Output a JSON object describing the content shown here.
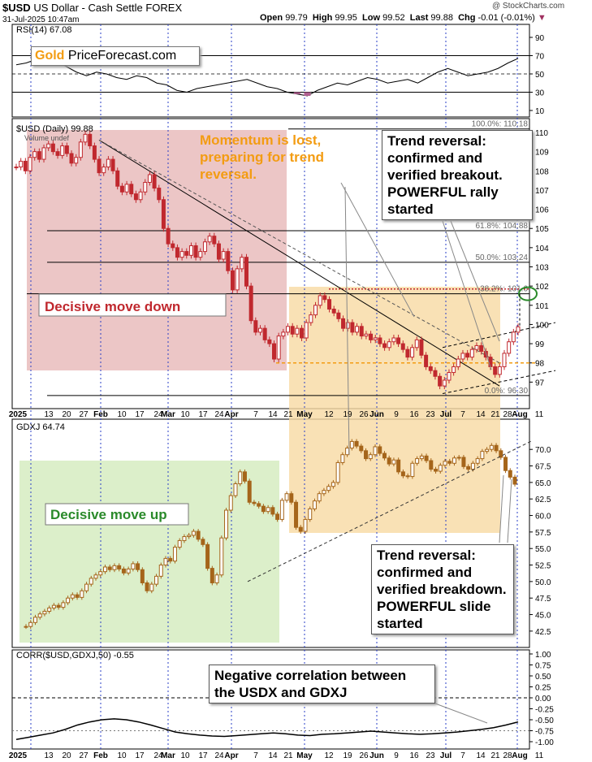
{
  "header": {
    "title": "$USD",
    "subtitle": "US Dollar - Cash Settle",
    "exchange": "FOREX",
    "date": "31-Jul-2025 10:47am",
    "open_label": "Open",
    "open": "99.79",
    "high_label": "High",
    "high": "99.95",
    "low_label": "Low",
    "low": "99.52",
    "last_label": "Last",
    "last": "99.88",
    "chg_label": "Chg",
    "chg": "-0.01 (-0.01%)",
    "watermark": "@ StockCharts.com"
  },
  "brand": {
    "gold": "Gold",
    "rest": "PriceForecast.com"
  },
  "colors": {
    "usd_candle": "#c0282e",
    "gdxj_candle": "#a5651a",
    "red_zone": "#e5b3b3",
    "orange_zone": "#f7d9a2",
    "green_zone": "#d6ecc1",
    "callout_orange": "#f39c12"
  },
  "callouts": {
    "momentum": "Momentum is lost, preparing for trend reversal.",
    "reversal_usd": "Trend reversal: confirmed and verified breakout. POWERFUL rally started",
    "reversal_gdxj": "Trend reversal: confirmed and verified breakdown. POWERFUL slide started",
    "negative_corr": "Negative correlation between the USDX and GDXJ"
  },
  "chart_data": [
    {
      "type": "line",
      "title": "RSI(14) 67.08",
      "ylim": [
        10,
        90
      ],
      "yticks": [
        10,
        30,
        50,
        70,
        90
      ],
      "reference_lines": [
        30,
        50,
        70
      ],
      "series": [
        {
          "name": "RSI(14)",
          "values": [
            60,
            62,
            66,
            68,
            64,
            58,
            52,
            48,
            52,
            50,
            46,
            44,
            48,
            46,
            40,
            38,
            32,
            30,
            34,
            36,
            38,
            40,
            42,
            44,
            40,
            36,
            34,
            30,
            28,
            26,
            32,
            36,
            40,
            38,
            42,
            46,
            44,
            40,
            42,
            44,
            40,
            46,
            52,
            56,
            52,
            48,
            50,
            52,
            56,
            62,
            67
          ]
        }
      ]
    },
    {
      "type": "candlestick",
      "title": "$USD (Daily) 99.88",
      "legend": "Volume undef",
      "ylim": [
        96,
        110
      ],
      "yticks": [
        97,
        98,
        99,
        100,
        101,
        102,
        103,
        104,
        105,
        106,
        107,
        108,
        109,
        110
      ],
      "fib_levels": [
        {
          "label": "100.0%: 110.18",
          "value": 110.18
        },
        {
          "label": "61.8%: 104.88",
          "value": 104.88
        },
        {
          "label": "50.0%: 103.24",
          "value": 103.24
        },
        {
          "label": "38.2%: 101.6",
          "value": 101.6
        },
        {
          "label": "0.0%: 96.30",
          "value": 96.3
        }
      ],
      "closes": [
        108.2,
        108.5,
        108.0,
        108.7,
        109.0,
        108.6,
        109.2,
        109.4,
        109.0,
        108.8,
        109.3,
        108.9,
        108.4,
        108.7,
        109.5,
        109.9,
        109.3,
        108.6,
        107.9,
        108.2,
        108.6,
        108.0,
        107.2,
        106.9,
        107.3,
        106.8,
        106.5,
        106.9,
        107.4,
        107.8,
        107.1,
        106.5,
        105.0,
        104.2,
        104.0,
        103.5,
        103.8,
        103.6,
        104.1,
        103.5,
        103.8,
        104.3,
        104.6,
        104.2,
        103.4,
        103.8,
        102.8,
        101.8,
        102.9,
        103.5,
        102.0,
        100.2,
        99.6,
        99.8,
        99.2,
        99.0,
        98.2,
        99.4,
        99.6,
        99.9,
        99.5,
        99.8,
        99.3,
        100.1,
        100.5,
        101.0,
        101.5,
        101.3,
        100.8,
        100.6,
        100.3,
        99.8,
        100.1,
        99.6,
        99.9,
        99.4,
        99.5,
        99.2,
        99.3,
        99.0,
        98.8,
        99.1,
        99.3,
        99.0,
        98.7,
        98.3,
        98.8,
        99.2,
        98.4,
        97.8,
        97.6,
        97.3,
        96.8,
        97.1,
        97.5,
        97.8,
        98.2,
        98.5,
        98.3,
        98.7,
        98.9,
        98.6,
        98.3,
        97.8,
        97.4,
        97.8,
        98.5,
        99.1,
        99.6,
        99.88
      ]
    },
    {
      "type": "candlestick",
      "title": "GDXJ 64.74",
      "ylim": [
        41.5,
        71.5
      ],
      "yticks": [
        42.5,
        45.0,
        47.5,
        50.0,
        52.5,
        55.0,
        57.5,
        60.0,
        62.5,
        65.0,
        67.5,
        70.0
      ],
      "closes": [
        43.2,
        43.8,
        44.6,
        45.1,
        45.5,
        46.0,
        46.4,
        46.1,
        46.8,
        47.5,
        48.0,
        47.6,
        48.6,
        49.6,
        50.5,
        51.0,
        51.5,
        52.2,
        51.8,
        52.4,
        51.9,
        51.3,
        51.9,
        52.7,
        51.8,
        49.8,
        48.6,
        49.6,
        50.8,
        52.5,
        53.5,
        53.1,
        55.2,
        56.2,
        56.8,
        57.0,
        57.6,
        56.4,
        55.6,
        52.0,
        49.8,
        51.0,
        56.6,
        60.8,
        63.0,
        64.8,
        66.6,
        65.2,
        62.0,
        61.8,
        61.4,
        60.6,
        61.2,
        60.2,
        59.4,
        62.3,
        63.3,
        62.0,
        58.2,
        57.6,
        59.4,
        61.0,
        62.2,
        63.3,
        63.8,
        64.4,
        65.0,
        68.0,
        69.2,
        70.2,
        71.2,
        70.5,
        69.8,
        68.6,
        69.2,
        70.4,
        69.4,
        68.7,
        67.8,
        68.4,
        66.6,
        66.0,
        65.9,
        67.9,
        68.6,
        69.0,
        68.3,
        67.0,
        66.7,
        67.6,
        68.2,
        67.9,
        68.7,
        68.8,
        67.4,
        67.0,
        67.9,
        68.6,
        69.7,
        70.0,
        70.6,
        69.8,
        68.8,
        66.8,
        65.8,
        64.74
      ]
    },
    {
      "type": "line",
      "title": "CORR($USD,GDXJ,50) -0.55",
      "ylim": [
        -1.0,
        1.0
      ],
      "yticks": [
        -1.0,
        -0.75,
        -0.5,
        -0.25,
        0.0,
        0.25,
        0.5,
        0.75,
        1.0
      ],
      "series": [
        {
          "name": "CORR($USD,GDXJ,50)",
          "values": [
            -0.95,
            -0.9,
            -0.85,
            -0.8,
            -0.72,
            -0.62,
            -0.55,
            -0.5,
            -0.48,
            -0.5,
            -0.55,
            -0.62,
            -0.7,
            -0.78,
            -0.82,
            -0.85,
            -0.87,
            -0.88,
            -0.86,
            -0.84,
            -0.82,
            -0.8,
            -0.82,
            -0.85,
            -0.86,
            -0.83,
            -0.82,
            -0.8,
            -0.78,
            -0.76,
            -0.78,
            -0.8,
            -0.82,
            -0.83,
            -0.82,
            -0.8,
            -0.78,
            -0.75,
            -0.72,
            -0.68,
            -0.62,
            -0.55
          ]
        }
      ]
    }
  ],
  "x_axis": {
    "usd_labels": [
      "2025",
      "13",
      "20",
      "27",
      "Feb",
      "10",
      "17",
      "24",
      "Mar",
      "10",
      "17",
      "24",
      "Apr",
      "7",
      "14",
      "21",
      "May",
      "12",
      "19",
      "26",
      "Jun",
      "9",
      "16",
      "23",
      "Jul",
      "7",
      "14",
      "21",
      "28",
      "Aug",
      "11"
    ],
    "bottom_labels": [
      "2025",
      "13",
      "20",
      "27",
      "Feb",
      "10",
      "17",
      "24",
      "Mar",
      "10",
      "17",
      "24",
      "Apr",
      "7",
      "14",
      "21",
      "May",
      "12",
      "19",
      "26",
      "Jun",
      "9",
      "16",
      "23",
      "Jul",
      "7",
      "14",
      "21",
      "28",
      "Aug",
      "11"
    ]
  },
  "zones": {
    "decisive_down": "Decisive move down",
    "decisive_up": "Decisive move up"
  }
}
